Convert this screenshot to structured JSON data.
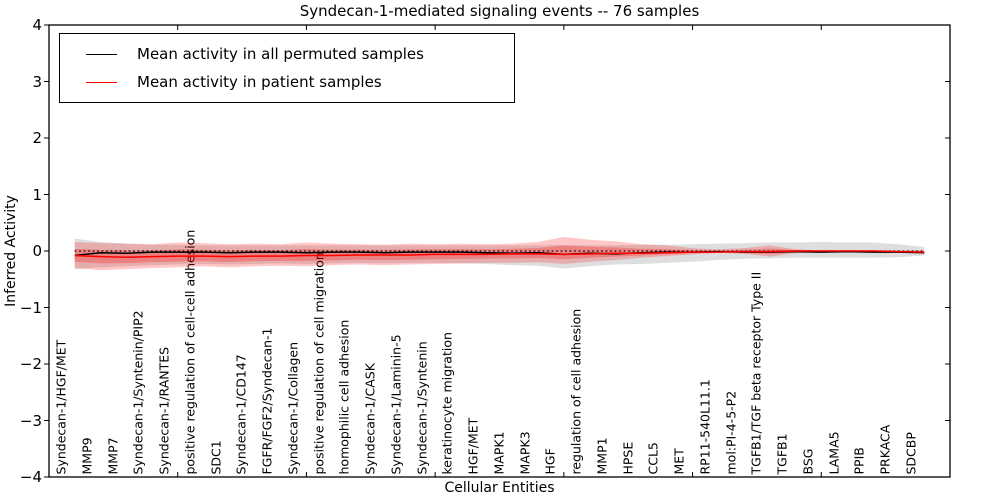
{
  "chart_data": {
    "type": "line",
    "title": "Syndecan-1-mediated signaling events -- 76 samples",
    "xlabel": "Cellular Entities",
    "ylabel": "Inferred Activity",
    "ylim": [
      -4,
      4
    ],
    "xlim": [
      0,
      35
    ],
    "grid": false,
    "legend_position": "upper left",
    "yticks": [
      "4",
      "3",
      "2",
      "1",
      "0",
      "−1",
      "−2",
      "−3",
      "−4"
    ],
    "ytick_values": [
      4,
      3,
      2,
      1,
      0,
      -1,
      -2,
      -3,
      -4
    ],
    "x_major_tick_units": [
      5,
      10,
      15,
      20,
      25,
      30
    ],
    "zero_line": {
      "value": 0,
      "style": "dotted",
      "color": "#000000"
    },
    "categories": [
      "Syndecan-1/HGF/MET",
      "MMP9",
      "MMP7",
      "Syndecan-1/Syntenin/PIP2",
      "Syndecan-1/RANTES",
      "positive regulation of cell-cell adhesion",
      "SDC1",
      "Syndecan-1/CD147",
      "FGFR/FGF2/Syndecan-1",
      "Syndecan-1/Collagen",
      "positive regulation of cell migration",
      "homophilic cell adhesion",
      "Syndecan-1/CASK",
      "Syndecan-1/Laminin-5",
      "Syndecan-1/Syntenin",
      "keratinocyte migration",
      "HGF/MET",
      "MAPK1",
      "MAPK3",
      "HGF",
      "regulation of cell adhesion",
      "MMP1",
      "HPSE",
      "CCL5",
      "MET",
      "RP11-540L11.1",
      "mol:PI-4-5-P2",
      "TGFB1/TGF beta receptor Type II",
      "TGFB1",
      "BSG",
      "LAMA5",
      "PPIB",
      "PRKACA",
      "SDCBP"
    ],
    "series": [
      {
        "name": "Mean activity in all permuted samples",
        "color": "#000000",
        "values": [
          -0.08,
          -0.03,
          -0.04,
          -0.02,
          -0.02,
          -0.02,
          -0.03,
          -0.02,
          -0.02,
          -0.03,
          -0.02,
          -0.02,
          -0.03,
          -0.02,
          -0.02,
          -0.02,
          -0.03,
          -0.04,
          -0.03,
          -0.06,
          -0.04,
          -0.05,
          -0.03,
          -0.02,
          -0.02,
          -0.01,
          -0.02,
          -0.02,
          -0.01,
          -0.02,
          -0.01,
          -0.02,
          -0.02,
          -0.03
        ]
      },
      {
        "name": "Mean activity in patient samples",
        "color": "#ff0000",
        "values": [
          -0.08,
          -0.1,
          -0.11,
          -0.1,
          -0.09,
          -0.09,
          -0.1,
          -0.09,
          -0.09,
          -0.08,
          -0.08,
          -0.07,
          -0.07,
          -0.07,
          -0.06,
          -0.06,
          -0.06,
          -0.05,
          -0.05,
          -0.06,
          -0.05,
          -0.04,
          -0.04,
          -0.03,
          -0.02,
          -0.02,
          -0.01,
          -0.01,
          0.0,
          0.0,
          0.0,
          0.0,
          -0.01,
          -0.02
        ]
      }
    ],
    "bands": [
      {
        "name": "permuted-std-band",
        "color": "rgba(0,0,0,0.13)",
        "upper": [
          0.22,
          0.16,
          0.13,
          0.11,
          0.11,
          0.1,
          0.1,
          0.1,
          0.1,
          0.1,
          0.1,
          0.1,
          0.1,
          0.1,
          0.1,
          0.1,
          0.1,
          0.1,
          0.1,
          0.11,
          0.1,
          0.1,
          0.11,
          0.11,
          0.12,
          0.13,
          0.14,
          0.15,
          0.15,
          0.16,
          0.15,
          0.15,
          0.12,
          0.07
        ],
        "lower": [
          -0.32,
          -0.29,
          -0.27,
          -0.25,
          -0.24,
          -0.23,
          -0.24,
          -0.23,
          -0.22,
          -0.23,
          -0.22,
          -0.21,
          -0.22,
          -0.21,
          -0.21,
          -0.22,
          -0.23,
          -0.25,
          -0.26,
          -0.31,
          -0.27,
          -0.24,
          -0.23,
          -0.21,
          -0.19,
          -0.16,
          -0.14,
          -0.13,
          -0.12,
          -0.12,
          -0.12,
          -0.12,
          -0.11,
          -0.08
        ]
      },
      {
        "name": "patient-std-band",
        "color": "rgba(255,0,0,0.22)",
        "upper": [
          0.16,
          0.14,
          0.13,
          0.12,
          0.15,
          0.14,
          0.12,
          0.13,
          0.12,
          0.15,
          0.13,
          0.12,
          0.11,
          0.13,
          0.12,
          0.13,
          0.12,
          0.13,
          0.16,
          0.25,
          0.2,
          0.17,
          0.12,
          0.1,
          0.05,
          0.03,
          0.05,
          0.1,
          0.03,
          0.01,
          0.01,
          0.01,
          0.01,
          0.01
        ],
        "lower": [
          -0.3,
          -0.34,
          -0.32,
          -0.3,
          -0.29,
          -0.27,
          -0.29,
          -0.27,
          -0.26,
          -0.27,
          -0.25,
          -0.24,
          -0.25,
          -0.24,
          -0.23,
          -0.22,
          -0.21,
          -0.21,
          -0.2,
          -0.23,
          -0.19,
          -0.16,
          -0.12,
          -0.09,
          -0.06,
          -0.03,
          -0.05,
          -0.1,
          -0.04,
          -0.02,
          -0.02,
          -0.02,
          -0.02,
          -0.02
        ]
      }
    ]
  }
}
